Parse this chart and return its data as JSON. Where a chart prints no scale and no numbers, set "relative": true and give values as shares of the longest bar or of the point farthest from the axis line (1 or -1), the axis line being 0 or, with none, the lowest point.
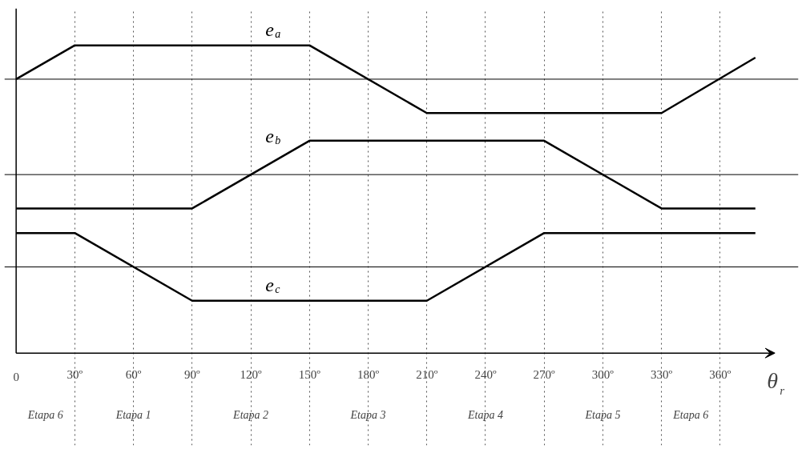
{
  "chart_data": {
    "type": "line",
    "relative": true,
    "xlabel": "θ$_{r}$",
    "xlim": [
      0,
      388
    ],
    "xticks": [
      0,
      {
        "value": 30,
        "label": "30º"
      },
      {
        "value": 60,
        "label": "60º"
      },
      {
        "value": 90,
        "label": "90º"
      },
      {
        "value": 120,
        "label": "120º"
      },
      {
        "value": 150,
        "label": "150º"
      },
      {
        "value": 180,
        "label": "180º"
      },
      {
        "value": 210,
        "label": "210º"
      },
      {
        "value": 240,
        "label": "240º"
      },
      {
        "value": 270,
        "label": "270º"
      },
      {
        "value": 300,
        "label": "300º"
      },
      {
        "value": 330,
        "label": "330º"
      },
      {
        "value": 360,
        "label": "360º"
      }
    ],
    "x": [
      0,
      30,
      150,
      210,
      330,
      378
    ],
    "series": [
      {
        "name": "e$_{a}$",
        "color": "#000000",
        "values": [
          0.89,
          1,
          1,
          0.78,
          0.78,
          0.96
        ]
      },
      {
        "name": "e$_{b}$",
        "color": "#000000",
        "x": [
          0,
          90,
          150,
          270,
          330,
          378
        ],
        "values": [
          0.47,
          0.47,
          0.69,
          0.69,
          0.47,
          0.47
        ]
      },
      {
        "name": "e$_{c}$",
        "color": "#000000",
        "x": [
          0,
          30,
          90,
          210,
          270,
          378
        ],
        "values": [
          0.39,
          0.39,
          0.17,
          0.17,
          0.39,
          0.39
        ]
      }
    ],
    "ref_lines": [
      {
        "axis": "y",
        "value": 0.89,
        "color": "#000000"
      },
      {
        "axis": "y",
        "value": 0.58,
        "color": "#000000"
      },
      {
        "axis": "y",
        "value": 0.28,
        "color": "#000000"
      }
    ],
    "grid": "x",
    "tick_labels": "x",
    "marker": "none",
    "annotations": [
      "Etapa 6",
      "Etapa 1",
      "Etapa 2",
      "Etapa 3",
      "Etapa 4",
      "Etapa 5",
      "Etapa 6"
    ]
  }
}
